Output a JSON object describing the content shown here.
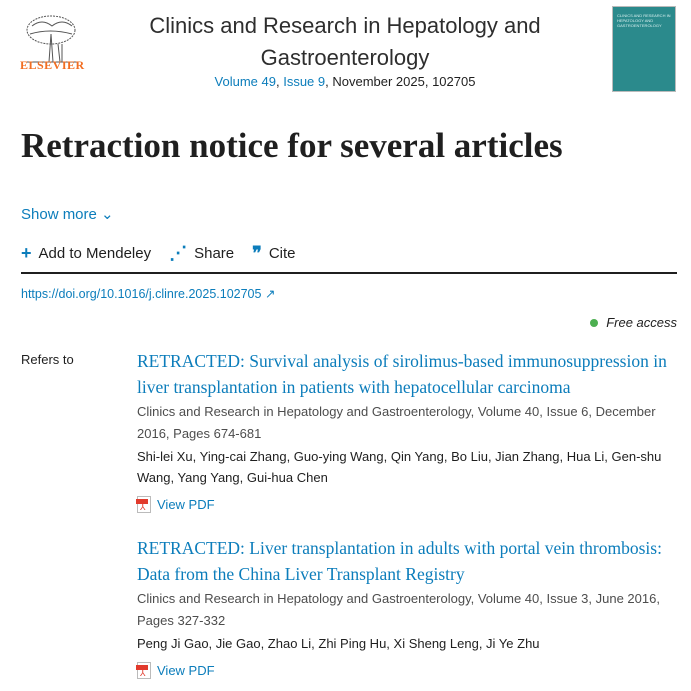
{
  "header": {
    "publisher": "ELSEVIER",
    "journal_title": "Clinics and Research in Hepatology and Gastroenterology",
    "volume": "Volume 49",
    "issue": "Issue 9",
    "rest": ", November 2025, 102705",
    "cover_text": "CLINICS AND RESEARCH IN HEPATOLOGY AND GASTROENTEROLOGY"
  },
  "article": {
    "title": "Retraction notice for several articles",
    "show_more": "Show more",
    "actions": {
      "mendeley": "Add to Mendeley",
      "share": "Share",
      "cite": "Cite"
    },
    "doi": "https://doi.org/10.1016/j.clinre.2025.102705",
    "access": "Free access",
    "refers_to": "Refers to"
  },
  "refs": [
    {
      "title": "RETRACTED: Survival analysis of sirolimus-based immunosuppression in liver transplantation in patients with hepatocellular carcinoma",
      "source": "Clinics and Research in Hepatology and Gastroenterology, Volume 40, Issue 6, December 2016, Pages 674-681",
      "authors": "Shi-lei Xu, Ying-cai Zhang, Guo-ying Wang, Qin Yang, Bo Liu, Jian Zhang, Hua Li, Gen-shu Wang, Yang Yang, Gui-hua Chen",
      "pdf": "View PDF"
    },
    {
      "title": "RETRACTED: Liver transplantation in adults with portal vein thrombosis: Data from the China Liver Transplant Registry",
      "source": "Clinics and Research in Hepatology and Gastroenterology, Volume 40, Issue 3, June 2016, Pages 327-332",
      "authors": "Peng Ji Gao, Jie Gao, Zhao Li, Zhi Ping Hu, Xi Sheng Leng, Ji Ye Zhu",
      "pdf": "View PDF"
    }
  ]
}
